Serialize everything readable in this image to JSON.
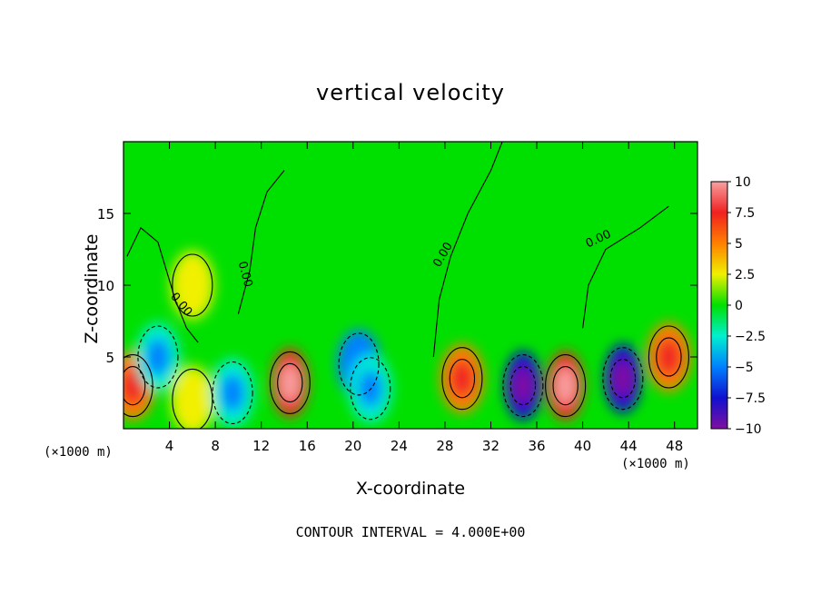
{
  "chart_data": {
    "type": "heatmap",
    "title": "vertical velocity",
    "xlabel": "X-coordinate",
    "ylabel": "Z-coordinate",
    "x_unit": "(×1000 m)",
    "y_unit": "(×1000 m)",
    "footer": "CONTOUR INTERVAL = 4.000E+00",
    "xlim": [
      0,
      50
    ],
    "ylim": [
      0,
      20
    ],
    "xticks": [
      "4",
      "8",
      "12",
      "16",
      "20",
      "24",
      "28",
      "32",
      "36",
      "40",
      "44",
      "48"
    ],
    "yticks": [
      "5",
      "10",
      "15"
    ],
    "contour_labels": [
      "0.00",
      "0.00",
      "0.00",
      "0.00"
    ],
    "colorbar": {
      "range": [
        -10,
        10
      ],
      "ticks": [
        "10",
        "7.5",
        "5",
        "2.5",
        "0",
        "−2.5",
        "−5",
        "−7.5",
        "−10"
      ],
      "colors": [
        "#f8a0a0",
        "#f02020",
        "#ff8000",
        "#f0f000",
        "#00e000",
        "#00f0d0",
        "#0080ff",
        "#1010d0",
        "#8010a0"
      ]
    },
    "features": [
      {
        "x": 0.8,
        "z": 3.0,
        "value": 7
      },
      {
        "x": 3.0,
        "z": 5.0,
        "value": -5
      },
      {
        "x": 6.0,
        "z": 10.0,
        "value": 3
      },
      {
        "x": 6.0,
        "z": 2.0,
        "value": 2
      },
      {
        "x": 9.5,
        "z": 2.5,
        "value": -5
      },
      {
        "x": 14.5,
        "z": 3.2,
        "value": 9
      },
      {
        "x": 20.5,
        "z": 4.5,
        "value": -6
      },
      {
        "x": 21.5,
        "z": 2.8,
        "value": -4
      },
      {
        "x": 29.5,
        "z": 3.5,
        "value": 7
      },
      {
        "x": 34.8,
        "z": 3.0,
        "value": -9
      },
      {
        "x": 38.5,
        "z": 3.0,
        "value": 12
      },
      {
        "x": 43.5,
        "z": 3.5,
        "value": -11
      },
      {
        "x": 47.5,
        "z": 5.0,
        "value": 8
      }
    ]
  }
}
